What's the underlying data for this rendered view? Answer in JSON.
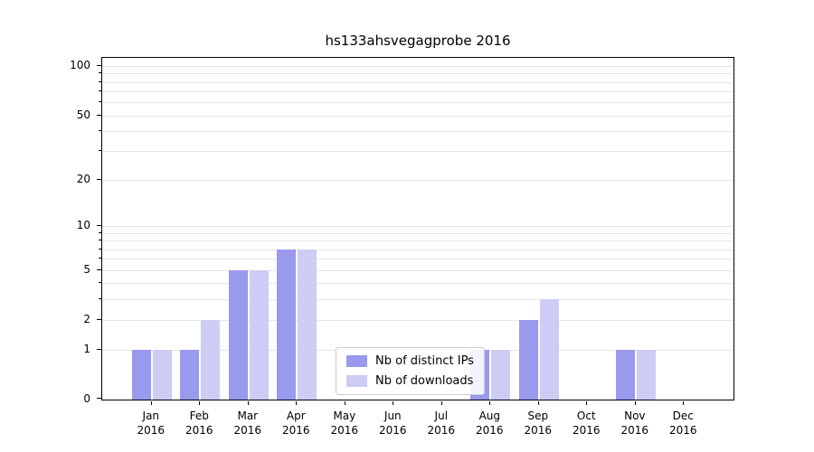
{
  "title": "hs133ahsvegagprobe 2016",
  "colors": {
    "distinct_ips": "#9999ee",
    "downloads": "#ccccf5",
    "gridline": "#e6e6e6",
    "axis": "#000000",
    "background": "#ffffff",
    "legend_border": "#cccccc"
  },
  "chart_data": {
    "type": "bar",
    "title": "hs133ahsvegagprobe 2016",
    "xlabel": "",
    "ylabel": "",
    "yscale": "log1p",
    "ylim": [
      0,
      112
    ],
    "ymax": 112,
    "yticks": [
      0,
      1,
      2,
      5,
      10,
      20,
      50,
      100
    ],
    "grid_values": [
      1,
      2,
      3,
      4,
      5,
      6,
      7,
      8,
      9,
      10,
      20,
      30,
      40,
      50,
      60,
      70,
      80,
      90,
      100
    ],
    "grid": "on",
    "legend_position": "lower-center",
    "categories": [
      {
        "month": "Jan",
        "year": "2016"
      },
      {
        "month": "Feb",
        "year": "2016"
      },
      {
        "month": "Mar",
        "year": "2016"
      },
      {
        "month": "Apr",
        "year": "2016"
      },
      {
        "month": "May",
        "year": "2016"
      },
      {
        "month": "Jun",
        "year": "2016"
      },
      {
        "month": "Jul",
        "year": "2016"
      },
      {
        "month": "Aug",
        "year": "2016"
      },
      {
        "month": "Sep",
        "year": "2016"
      },
      {
        "month": "Oct",
        "year": "2016"
      },
      {
        "month": "Nov",
        "year": "2016"
      },
      {
        "month": "Dec",
        "year": "2016"
      }
    ],
    "series": [
      {
        "name": "Nb of distinct IPs",
        "color_key": "distinct_ips",
        "values": [
          1,
          1,
          5,
          7,
          0,
          0,
          0,
          1,
          2,
          0,
          1,
          0
        ]
      },
      {
        "name": "Nb of downloads",
        "color_key": "downloads",
        "values": [
          1,
          2,
          5,
          7,
          0,
          0,
          0,
          1,
          3,
          0,
          1,
          0
        ]
      }
    ]
  }
}
